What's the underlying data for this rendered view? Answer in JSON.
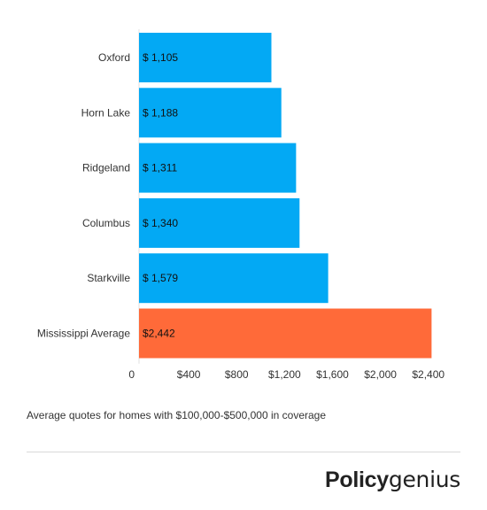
{
  "chart_data": {
    "type": "bar",
    "orientation": "horizontal",
    "categories": [
      "Oxford",
      "Horn Lake",
      "Ridgeland",
      "Columbus",
      "Starkville",
      "Mississippi Average"
    ],
    "values": [
      1105,
      1188,
      1311,
      1340,
      1579,
      2442
    ],
    "value_labels": [
      "$ 1,105",
      "$ 1,188",
      "$ 1,311",
      "$ 1,340",
      "$ 1,579",
      "$2,442"
    ],
    "colors": [
      "#03a9f4",
      "#03a9f4",
      "#03a9f4",
      "#03a9f4",
      "#03a9f4",
      "#ff6a39"
    ],
    "x_ticks": [
      0,
      400,
      800,
      1200,
      1600,
      2000,
      2400
    ],
    "x_tick_labels": [
      "0",
      "$400",
      "$800",
      "$1,200",
      "$1,600",
      "$2,000",
      "$2,400"
    ],
    "xlim": [
      0,
      2550
    ],
    "grid": false,
    "title": "",
    "xlabel": "",
    "ylabel": ""
  },
  "caption": "Average quotes for homes with $100,000-$500,000 in coverage",
  "brand": {
    "part1": "Policy",
    "part2": "genius"
  }
}
